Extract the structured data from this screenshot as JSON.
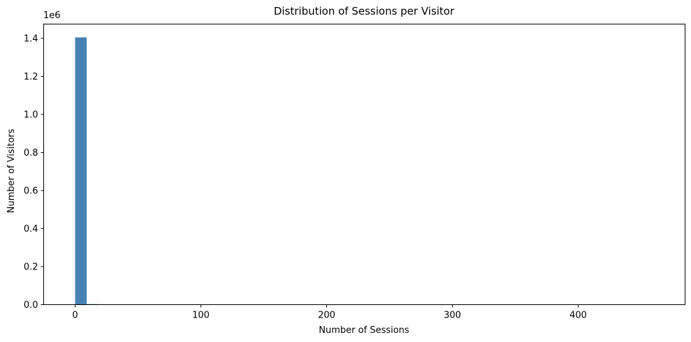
{
  "chart_data": {
    "type": "bar",
    "title": "Distribution of Sessions per Visitor",
    "xlabel": "Number of Sessions",
    "ylabel": "Number of Visitors",
    "y_offset_text": "1e6",
    "xlim": [
      -25,
      485
    ],
    "ylim": [
      0,
      1.475
    ],
    "x_ticks": [
      0,
      100,
      200,
      300,
      400
    ],
    "y_ticks": [
      0.0,
      0.2,
      0.4,
      0.6,
      0.8,
      1.0,
      1.2,
      1.4
    ],
    "grid": false,
    "bar_color": "#4682b4",
    "bins": [
      {
        "start": 0,
        "end": 9.2,
        "value": 1.405
      },
      {
        "start": 9.2,
        "end": 18.4,
        "value": 0.003
      },
      {
        "start": 18.4,
        "end": 27.6,
        "value": 0.0004
      },
      {
        "start": 27.6,
        "end": 36.8,
        "value": 0.0001
      }
    ]
  }
}
